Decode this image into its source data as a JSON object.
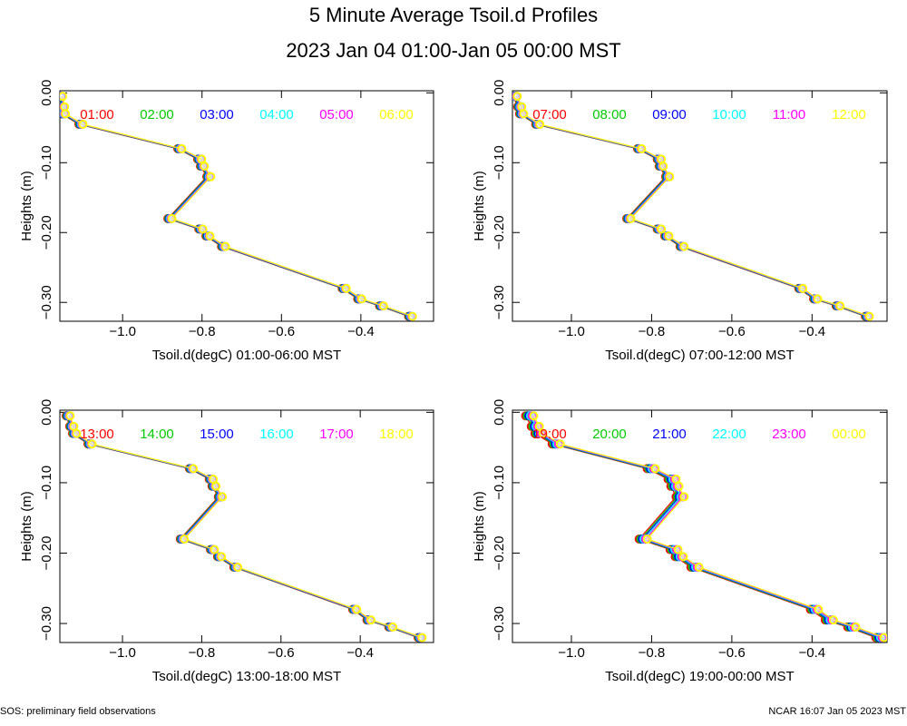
{
  "title": "5 Minute Average Tsoil.d Profiles",
  "subtitle": "2023 Jan 04 01:00-Jan 05 00:00 MST",
  "footer_left": "SOS: preliminary field observations",
  "footer_right": "NCAR 16:07 Jan 05 2023 MST",
  "chart_data": [
    {
      "type": "line",
      "xlabel": "Tsoil.d(degC) 01:00-06:00 MST",
      "ylabel": "Heights (m)",
      "xlim": [
        -1.158,
        -0.217
      ],
      "ylim": [
        -0.327,
        0.003
      ],
      "xticks": [
        {
          "value": -1.0,
          "label": "−1.0"
        },
        {
          "value": -0.8,
          "label": "−0.8"
        },
        {
          "value": -0.6,
          "label": "−0.6"
        },
        {
          "value": -0.4,
          "label": "−0.4"
        }
      ],
      "yticks": [
        {
          "value": 0,
          "label": "0.00"
        },
        {
          "value": -0.1,
          "label": "−0.10"
        },
        {
          "value": -0.2,
          "label": "−0.20"
        },
        {
          "value": -0.3,
          "label": "−0.30"
        }
      ],
      "y": [
        -0.005,
        -0.02,
        -0.03,
        -0.045,
        -0.08,
        -0.095,
        -0.105,
        -0.12,
        -0.18,
        -0.195,
        -0.205,
        -0.22,
        -0.28,
        -0.295,
        -0.305,
        -0.32
      ],
      "series": [
        {
          "name": "01:00",
          "color": "#ff0000",
          "x": [
            -1.161,
            -1.156,
            -1.154,
            -1.11,
            -0.861,
            -0.811,
            -0.804,
            -0.788,
            -0.886,
            -0.808,
            -0.79,
            -0.751,
            -0.447,
            -0.408,
            -0.353,
            -0.28
          ]
        },
        {
          "name": "02:00",
          "color": "#00cc00",
          "x": [
            -1.159,
            -1.154,
            -1.152,
            -1.108,
            -0.859,
            -0.809,
            -0.802,
            -0.786,
            -0.884,
            -0.806,
            -0.788,
            -0.749,
            -0.445,
            -0.406,
            -0.351,
            -0.278
          ]
        },
        {
          "name": "03:00",
          "color": "#0000ff",
          "x": [
            -1.157,
            -1.152,
            -1.15,
            -1.106,
            -0.857,
            -0.807,
            -0.8,
            -0.784,
            -0.882,
            -0.804,
            -0.786,
            -0.747,
            -0.443,
            -0.404,
            -0.349,
            -0.276
          ]
        },
        {
          "name": "04:00",
          "color": "#00ffff",
          "x": [
            -1.155,
            -1.15,
            -1.148,
            -1.104,
            -0.855,
            -0.805,
            -0.798,
            -0.782,
            -0.88,
            -0.802,
            -0.784,
            -0.745,
            -0.441,
            -0.402,
            -0.347,
            -0.274
          ]
        },
        {
          "name": "05:00",
          "color": "#ff00ff",
          "x": [
            -1.153,
            -1.148,
            -1.146,
            -1.102,
            -0.853,
            -0.803,
            -0.796,
            -0.78,
            -0.878,
            -0.8,
            -0.782,
            -0.743,
            -0.439,
            -0.4,
            -0.345,
            -0.272
          ]
        },
        {
          "name": "06:00",
          "color": "#ffff00",
          "x": [
            -1.151,
            -1.146,
            -1.144,
            -1.1,
            -0.851,
            -0.801,
            -0.794,
            -0.778,
            -0.876,
            -0.798,
            -0.78,
            -0.741,
            -0.437,
            -0.398,
            -0.343,
            -0.27
          ]
        }
      ]
    },
    {
      "type": "line",
      "xlabel": "Tsoil.d(degC) 07:00-12:00 MST",
      "ylabel": "Heights (m)",
      "xlim": [
        -1.147,
        -0.213
      ],
      "ylim": [
        -0.327,
        0.003
      ],
      "xticks": [
        {
          "value": -1.0,
          "label": "−1.0"
        },
        {
          "value": -0.8,
          "label": "−0.8"
        },
        {
          "value": -0.6,
          "label": "−0.6"
        },
        {
          "value": -0.4,
          "label": "−0.4"
        }
      ],
      "yticks": [
        {
          "value": 0,
          "label": "0.00"
        },
        {
          "value": -0.1,
          "label": "−0.10"
        },
        {
          "value": -0.2,
          "label": "−0.20"
        },
        {
          "value": -0.3,
          "label": "−0.30"
        }
      ],
      "y": [
        -0.005,
        -0.02,
        -0.03,
        -0.045,
        -0.08,
        -0.095,
        -0.105,
        -0.12,
        -0.18,
        -0.195,
        -0.205,
        -0.22,
        -0.28,
        -0.295,
        -0.305,
        -0.32
      ],
      "series": [
        {
          "name": "07:00",
          "color": "#ff0000",
          "x": [
            -1.145,
            -1.134,
            -1.129,
            -1.089,
            -0.835,
            -0.786,
            -0.781,
            -0.765,
            -0.862,
            -0.786,
            -0.767,
            -0.729,
            -0.433,
            -0.396,
            -0.34,
            -0.267
          ]
        },
        {
          "name": "08:00",
          "color": "#00cc00",
          "x": [
            -1.143,
            -1.132,
            -1.127,
            -1.087,
            -0.833,
            -0.784,
            -0.779,
            -0.763,
            -0.86,
            -0.784,
            -0.765,
            -0.727,
            -0.431,
            -0.394,
            -0.338,
            -0.265
          ]
        },
        {
          "name": "09:00",
          "color": "#0000ff",
          "x": [
            -1.141,
            -1.13,
            -1.125,
            -1.085,
            -0.831,
            -0.782,
            -0.777,
            -0.761,
            -0.858,
            -0.782,
            -0.763,
            -0.725,
            -0.429,
            -0.392,
            -0.336,
            -0.263
          ]
        },
        {
          "name": "10:00",
          "color": "#00ffff",
          "x": [
            -1.139,
            -1.128,
            -1.123,
            -1.083,
            -0.829,
            -0.78,
            -0.775,
            -0.759,
            -0.856,
            -0.78,
            -0.761,
            -0.723,
            -0.427,
            -0.39,
            -0.334,
            -0.261
          ]
        },
        {
          "name": "11:00",
          "color": "#ff00ff",
          "x": [
            -1.137,
            -1.126,
            -1.121,
            -1.081,
            -0.827,
            -0.778,
            -0.773,
            -0.757,
            -0.854,
            -0.778,
            -0.759,
            -0.721,
            -0.425,
            -0.388,
            -0.332,
            -0.259
          ]
        },
        {
          "name": "12:00",
          "color": "#ffff00",
          "x": [
            -1.135,
            -1.124,
            -1.119,
            -1.079,
            -0.825,
            -0.776,
            -0.771,
            -0.755,
            -0.852,
            -0.776,
            -0.757,
            -0.719,
            -0.423,
            -0.386,
            -0.33,
            -0.257
          ]
        }
      ]
    },
    {
      "type": "line",
      "xlabel": "Tsoil.d(degC) 13:00-18:00 MST",
      "ylabel": "Heights (m)",
      "xlim": [
        -1.158,
        -0.215
      ],
      "ylim": [
        -0.327,
        0.003
      ],
      "xticks": [
        {
          "value": -1.0,
          "label": "−1.0"
        },
        {
          "value": -0.8,
          "label": "−0.8"
        },
        {
          "value": -0.6,
          "label": "−0.6"
        },
        {
          "value": -0.4,
          "label": "−0.4"
        }
      ],
      "yticks": [
        {
          "value": 0,
          "label": "0.00"
        },
        {
          "value": -0.1,
          "label": "−0.10"
        },
        {
          "value": -0.2,
          "label": "−0.20"
        },
        {
          "value": -0.3,
          "label": "−0.30"
        }
      ],
      "y": [
        -0.005,
        -0.02,
        -0.03,
        -0.045,
        -0.08,
        -0.095,
        -0.105,
        -0.12,
        -0.18,
        -0.195,
        -0.205,
        -0.22,
        -0.28,
        -0.295,
        -0.305,
        -0.32
      ],
      "series": [
        {
          "name": "13:00",
          "color": "#ff0000",
          "x": [
            -1.142,
            -1.133,
            -1.126,
            -1.087,
            -0.831,
            -0.781,
            -0.774,
            -0.758,
            -0.854,
            -0.778,
            -0.76,
            -0.719,
            -0.419,
            -0.383,
            -0.328,
            -0.254
          ]
        },
        {
          "name": "14:00",
          "color": "#00cc00",
          "x": [
            -1.14,
            -1.131,
            -1.124,
            -1.085,
            -0.829,
            -0.779,
            -0.772,
            -0.756,
            -0.852,
            -0.776,
            -0.758,
            -0.717,
            -0.417,
            -0.381,
            -0.326,
            -0.252
          ]
        },
        {
          "name": "15:00",
          "color": "#0000ff",
          "x": [
            -1.138,
            -1.129,
            -1.122,
            -1.083,
            -0.827,
            -0.777,
            -0.77,
            -0.754,
            -0.85,
            -0.774,
            -0.756,
            -0.715,
            -0.415,
            -0.379,
            -0.324,
            -0.25
          ]
        },
        {
          "name": "16:00",
          "color": "#00ffff",
          "x": [
            -1.136,
            -1.127,
            -1.12,
            -1.081,
            -0.825,
            -0.775,
            -0.768,
            -0.752,
            -0.848,
            -0.772,
            -0.754,
            -0.713,
            -0.413,
            -0.377,
            -0.322,
            -0.248
          ]
        },
        {
          "name": "17:00",
          "color": "#ff00ff",
          "x": [
            -1.134,
            -1.125,
            -1.118,
            -1.079,
            -0.823,
            -0.773,
            -0.766,
            -0.75,
            -0.846,
            -0.77,
            -0.752,
            -0.711,
            -0.411,
            -0.375,
            -0.32,
            -0.246
          ]
        },
        {
          "name": "18:00",
          "color": "#ffff00",
          "x": [
            -1.132,
            -1.123,
            -1.116,
            -1.077,
            -0.821,
            -0.771,
            -0.764,
            -0.748,
            -0.844,
            -0.768,
            -0.75,
            -0.709,
            -0.409,
            -0.373,
            -0.318,
            -0.244
          ]
        }
      ]
    },
    {
      "type": "line",
      "xlabel": "Tsoil.d(degC) 19:00-00:00 MST",
      "ylabel": "Heights (m)",
      "xlim": [
        -1.147,
        -0.213
      ],
      "ylim": [
        -0.327,
        0.003
      ],
      "xticks": [
        {
          "value": -1.0,
          "label": "−1.0"
        },
        {
          "value": -0.8,
          "label": "−0.8"
        },
        {
          "value": -0.6,
          "label": "−0.6"
        },
        {
          "value": -0.4,
          "label": "−0.4"
        }
      ],
      "yticks": [
        {
          "value": 0,
          "label": "0.00"
        },
        {
          "value": -0.1,
          "label": "−0.10"
        },
        {
          "value": -0.2,
          "label": "−0.20"
        },
        {
          "value": -0.3,
          "label": "−0.30"
        }
      ],
      "y": [
        -0.005,
        -0.02,
        -0.03,
        -0.045,
        -0.08,
        -0.095,
        -0.105,
        -0.12,
        -0.18,
        -0.195,
        -0.205,
        -0.22,
        -0.28,
        -0.295,
        -0.305,
        -0.32
      ],
      "series": [
        {
          "name": "19:00",
          "color": "#ff0000",
          "x": [
            -1.114,
            -1.1,
            -1.091,
            -1.048,
            -0.811,
            -0.759,
            -0.752,
            -0.739,
            -0.831,
            -0.754,
            -0.741,
            -0.702,
            -0.404,
            -0.367,
            -0.311,
            -0.241
          ]
        },
        {
          "name": "20:00",
          "color": "#00cc00",
          "x": [
            -1.11,
            -1.096,
            -1.087,
            -1.044,
            -0.807,
            -0.755,
            -0.748,
            -0.735,
            -0.827,
            -0.75,
            -0.737,
            -0.698,
            -0.4,
            -0.363,
            -0.307,
            -0.237
          ]
        },
        {
          "name": "21:00",
          "color": "#0000ff",
          "x": [
            -1.106,
            -1.092,
            -1.083,
            -1.04,
            -0.803,
            -0.751,
            -0.744,
            -0.731,
            -0.823,
            -0.746,
            -0.733,
            -0.694,
            -0.396,
            -0.359,
            -0.303,
            -0.233
          ]
        },
        {
          "name": "22:00",
          "color": "#00ffff",
          "x": [
            -1.102,
            -1.088,
            -1.079,
            -1.036,
            -0.799,
            -0.747,
            -0.74,
            -0.727,
            -0.819,
            -0.742,
            -0.729,
            -0.69,
            -0.392,
            -0.355,
            -0.299,
            -0.229
          ]
        },
        {
          "name": "23:00",
          "color": "#ff00ff",
          "x": [
            -1.098,
            -1.084,
            -1.075,
            -1.032,
            -0.795,
            -0.743,
            -0.736,
            -0.723,
            -0.815,
            -0.738,
            -0.725,
            -0.686,
            -0.388,
            -0.351,
            -0.295,
            -0.225
          ]
        },
        {
          "name": "00:00",
          "color": "#ffff00",
          "x": [
            -1.094,
            -1.08,
            -1.071,
            -1.028,
            -0.791,
            -0.739,
            -0.732,
            -0.719,
            -0.811,
            -0.734,
            -0.721,
            -0.682,
            -0.384,
            -0.347,
            -0.291,
            -0.221
          ]
        }
      ]
    }
  ]
}
